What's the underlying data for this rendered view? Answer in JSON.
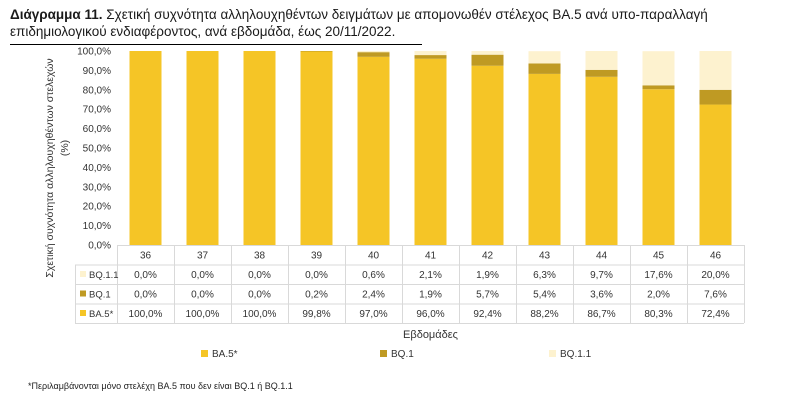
{
  "title_bold": "Διάγραμμα 11.",
  "title_rest": "Σχετική συχνότητα αλληλουχηθέντων δειγμάτων με απομονωθέν στέλεχος BA.5 ανά υπο-παραλλαγή επιδημιολογικού ενδιαφέροντος, ανά εβδομάδα, έως 20/11/2022.",
  "footnote": "*Περιλαμβάνονται μόνο στελέχη BA.5 που δεν είναι BQ.1 ή BQ.1.1",
  "chart_data": {
    "type": "bar",
    "stacked": true,
    "categories": [
      "36",
      "37",
      "38",
      "39",
      "40",
      "41",
      "42",
      "43",
      "44",
      "45",
      "46"
    ],
    "series": [
      {
        "name": "BA.5*",
        "color": "#f5c526",
        "values": [
          100.0,
          100.0,
          100.0,
          99.8,
          97.0,
          96.0,
          92.4,
          88.2,
          86.7,
          80.3,
          72.4
        ]
      },
      {
        "name": "BQ.1",
        "color": "#bf9a23",
        "values": [
          0.0,
          0.0,
          0.0,
          0.2,
          2.4,
          1.9,
          5.7,
          5.4,
          3.6,
          2.0,
          7.6
        ]
      },
      {
        "name": "BQ.1.1",
        "color": "#fdf2cf",
        "values": [
          0.0,
          0.0,
          0.0,
          0.0,
          0.6,
          2.1,
          1.9,
          6.3,
          9.7,
          17.6,
          20.0
        ]
      }
    ],
    "table_rows": [
      {
        "name": "BQ.1.1",
        "color": "#fdf2cf",
        "labels": [
          "0,0%",
          "0,0%",
          "0,0%",
          "0,0%",
          "0,6%",
          "2,1%",
          "1,9%",
          "6,3%",
          "9,7%",
          "17,6%",
          "20,0%"
        ]
      },
      {
        "name": "BQ.1",
        "color": "#bf9a23",
        "labels": [
          "0,0%",
          "0,0%",
          "0,0%",
          "0,2%",
          "2,4%",
          "1,9%",
          "5,7%",
          "5,4%",
          "3,6%",
          "2,0%",
          "7,6%"
        ]
      },
      {
        "name": "BA.5*",
        "color": "#f5c526",
        "labels": [
          "100,0%",
          "100,0%",
          "100,0%",
          "99,8%",
          "97,0%",
          "96,0%",
          "92,4%",
          "88,2%",
          "86,7%",
          "80,3%",
          "72,4%"
        ]
      }
    ],
    "y_ticks": [
      "0,0%",
      "10,0%",
      "20,0%",
      "30,0%",
      "40,0%",
      "50,0%",
      "60,0%",
      "70,0%",
      "80,0%",
      "90,0%",
      "100,0%"
    ],
    "ylim": [
      0,
      100
    ],
    "ylabel": "Σχετική συχνότητα αλληλουχηθέντων στελεχών (%)",
    "xlabel": "Εβδομάδες",
    "legend": [
      "BA.5*",
      "BQ.1",
      "BQ.1.1"
    ],
    "legend_position": "bottom",
    "grid": false
  }
}
